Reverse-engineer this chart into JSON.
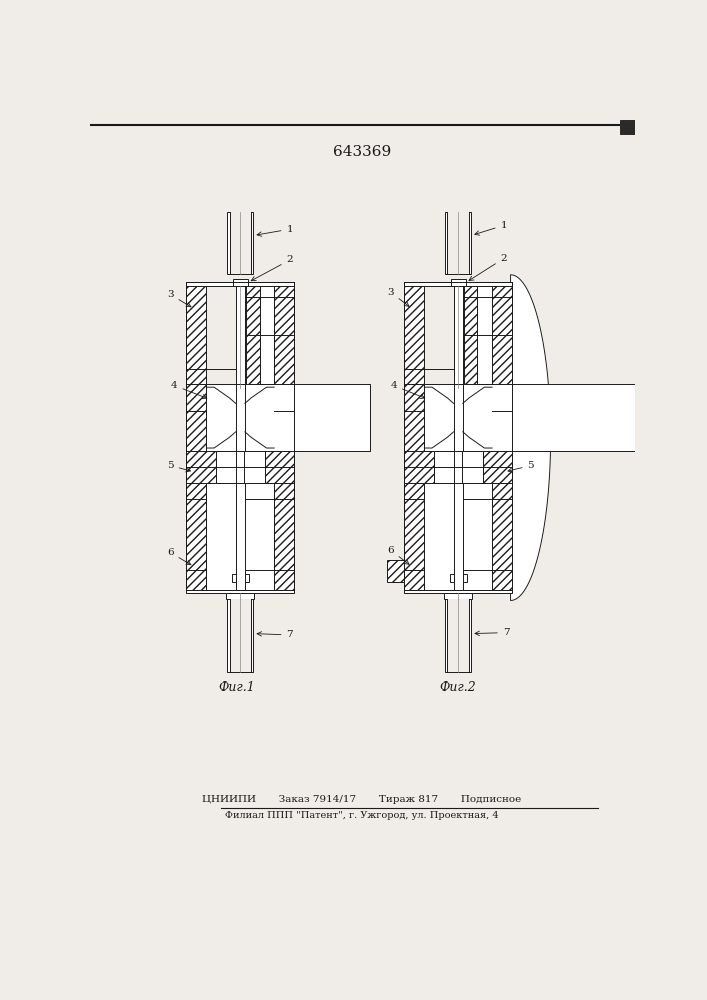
{
  "title": "643369",
  "fig1_caption": "Фиг.1",
  "fig2_caption": "Фиг.2",
  "footer_line1": "ЦНИИПИ       Заказ 7914/17       Тираж 817       Подписное",
  "footer_line2": "Филиал ППП \"Патент\", г. Ужгород, ул. Проектная, 4",
  "bg_color": "#f0ede8",
  "line_color": "#1a1a1a"
}
